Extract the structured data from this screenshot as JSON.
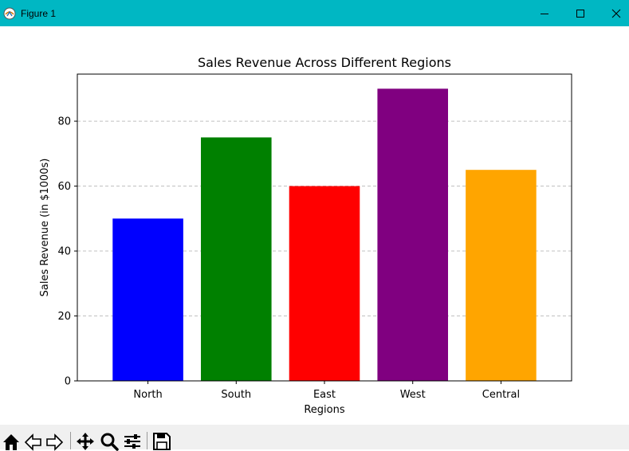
{
  "window": {
    "title": "Figure 1",
    "accent_color": "#00b7c3",
    "controls": [
      "minimize-icon",
      "maximize-icon",
      "close-icon"
    ]
  },
  "toolbar": {
    "icons": [
      "home-icon",
      "back-arrow-icon",
      "forward-arrow-icon",
      "pan-move-icon",
      "zoom-magnifier-icon",
      "configure-subplots-icon",
      "save-disk-icon"
    ]
  },
  "chart_data": {
    "type": "bar",
    "title": "Sales Revenue Across Different Regions",
    "xlabel": "Regions",
    "ylabel": "Sales Revenue (in $1000s)",
    "categories": [
      "North",
      "South",
      "East",
      "West",
      "Central"
    ],
    "values": [
      50,
      75,
      60,
      90,
      65
    ],
    "colors": [
      "#0000ff",
      "#008000",
      "#ff0000",
      "#800080",
      "#ffa500"
    ],
    "ylim": [
      0,
      94.5
    ],
    "yticks": [
      0,
      20,
      40,
      60,
      80
    ],
    "grid": {
      "axis": "y",
      "style": "dashed",
      "color": "#c0c0c0"
    }
  }
}
